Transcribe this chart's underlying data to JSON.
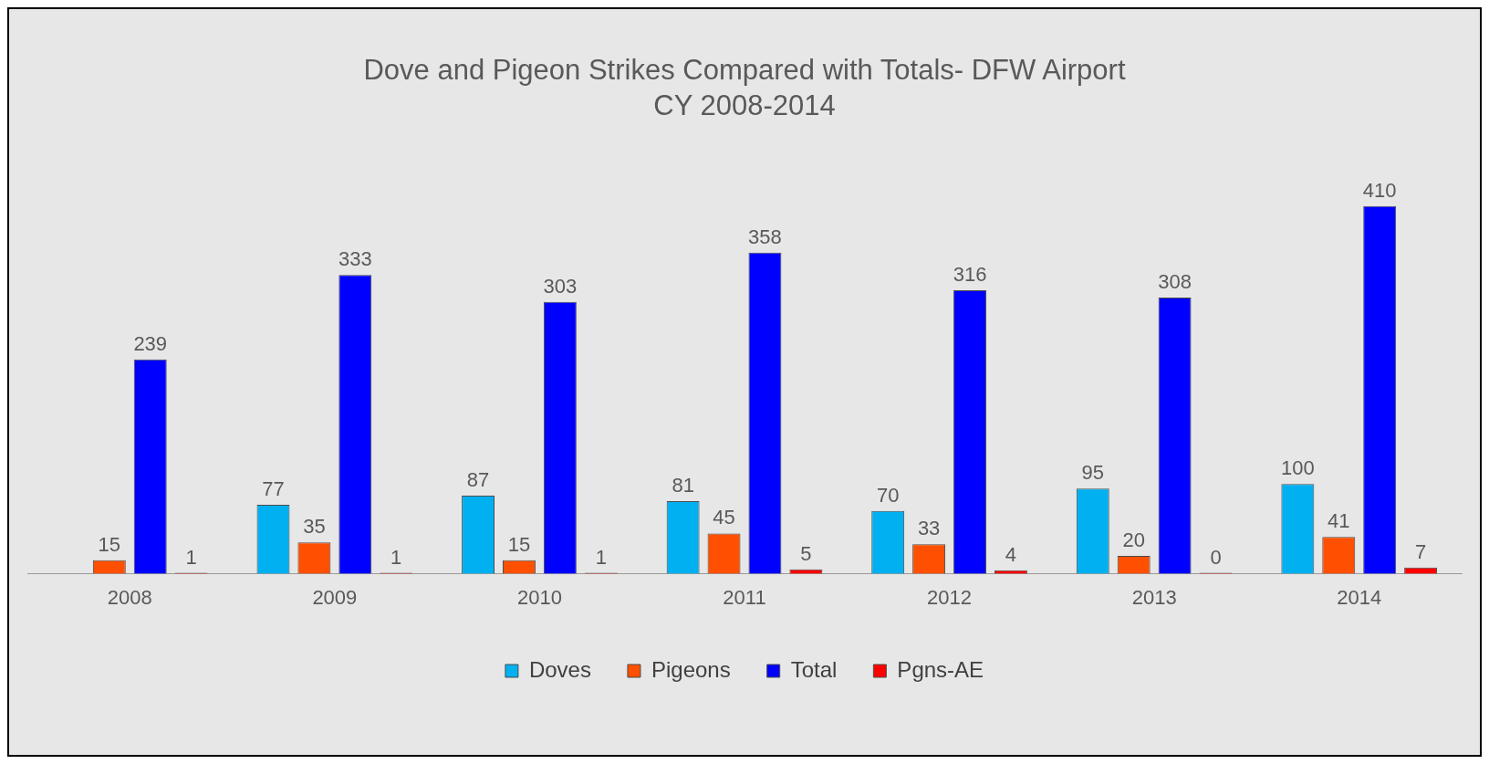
{
  "chart_data": {
    "type": "bar",
    "title": "Dove and Pigeon Strikes Compared with Totals- DFW Airport",
    "subtitle": "CY 2008-2014",
    "categories": [
      "2008",
      "2009",
      "2010",
      "2011",
      "2012",
      "2013",
      "2014"
    ],
    "series": [
      {
        "name": "Doves",
        "color": "#00b0f0",
        "values": [
          null,
          77,
          87,
          81,
          70,
          95,
          100
        ]
      },
      {
        "name": "Pigeons",
        "color": "#fe5000",
        "values": [
          15,
          35,
          15,
          45,
          33,
          20,
          41
        ]
      },
      {
        "name": "Total",
        "color": "#0000ff",
        "values": [
          239,
          333,
          303,
          358,
          316,
          308,
          410
        ]
      },
      {
        "name": "Pgns-AE",
        "color": "#ff0000",
        "values": [
          1,
          1,
          1,
          5,
          4,
          0,
          7
        ]
      }
    ],
    "data_labels": true,
    "legend": "bottom",
    "grid": false
  }
}
